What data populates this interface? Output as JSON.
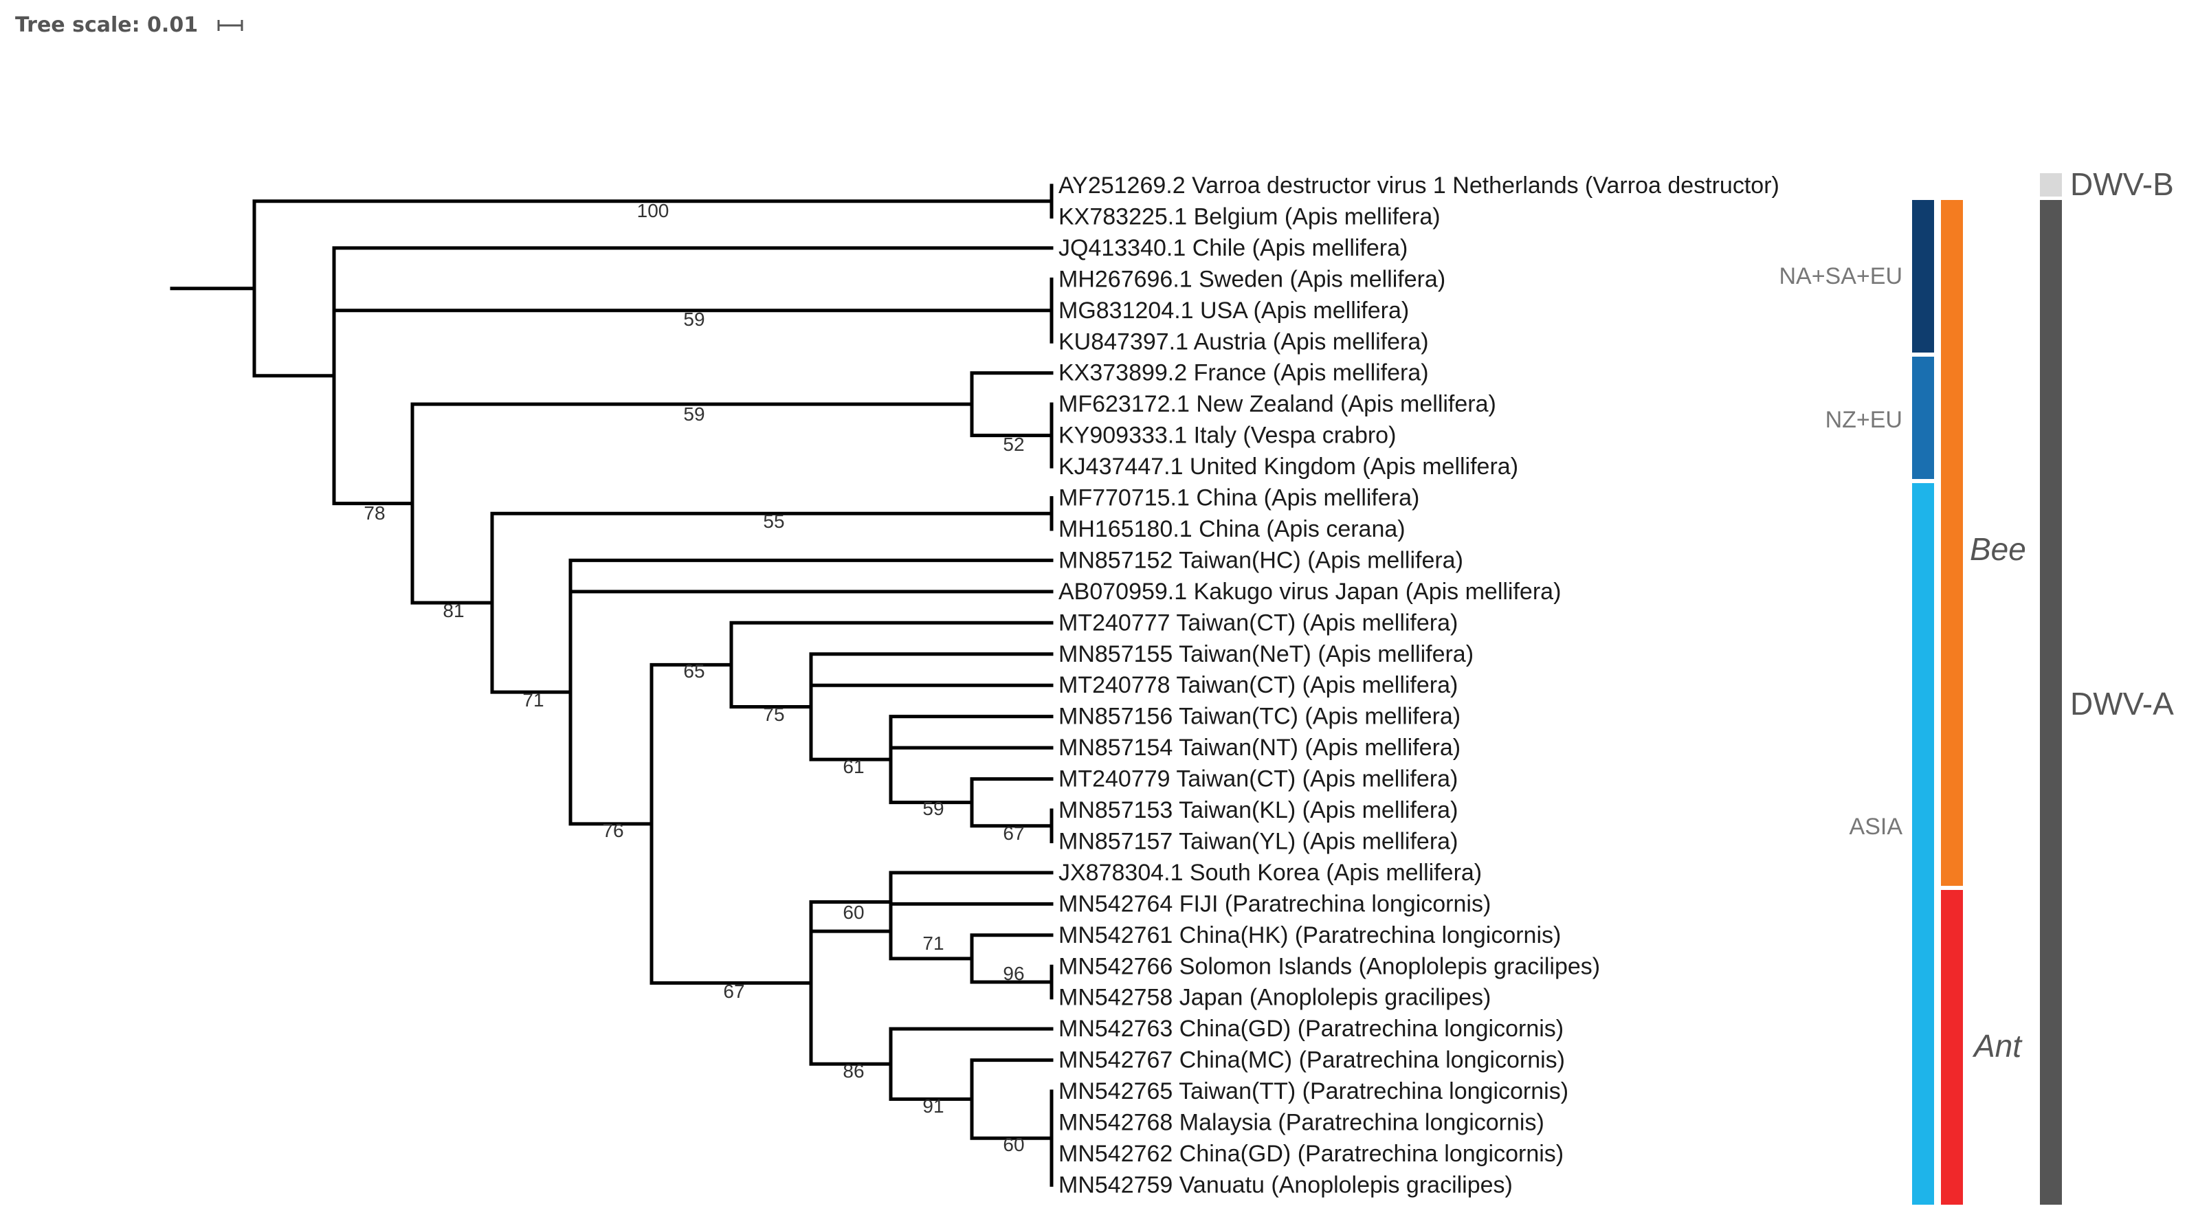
{
  "tree_scale": {
    "label": "Tree scale: 0.01"
  },
  "leaves": [
    "AY251269.2 Varroa destructor virus 1 Netherlands (Varroa destructor)",
    "KX783225.1 Belgium (Apis mellifera)",
    "JQ413340.1 Chile (Apis mellifera)",
    "MH267696.1 Sweden (Apis mellifera)",
    "MG831204.1 USA (Apis mellifera)",
    "KU847397.1 Austria (Apis mellifera)",
    "KX373899.2 France (Apis mellifera)",
    "MF623172.1 New Zealand (Apis mellifera)",
    "KY909333.1 Italy (Vespa crabro)",
    "KJ437447.1 United Kingdom (Apis mellifera)",
    "MF770715.1 China (Apis mellifera)",
    "MH165180.1 China (Apis cerana)",
    "MN857152 Taiwan(HC) (Apis mellifera)",
    "AB070959.1 Kakugo virus Japan (Apis mellifera)",
    "MT240777 Taiwan(CT) (Apis mellifera)",
    "MN857155 Taiwan(NeT) (Apis mellifera)",
    "MT240778 Taiwan(CT) (Apis mellifera)",
    "MN857156 Taiwan(TC) (Apis mellifera)",
    "MN857154 Taiwan(NT) (Apis mellifera)",
    "MT240779 Taiwan(CT) (Apis mellifera)",
    "MN857153 Taiwan(KL) (Apis mellifera)",
    "MN857157 Taiwan(YL) (Apis mellifera)",
    "JX878304.1 South Korea (Apis mellifera)",
    "MN542764 FIJI (Paratrechina longicornis)",
    "MN542761 China(HK) (Paratrechina longicornis)",
    "MN542766 Solomon Islands (Anoplolepis gracilipes)",
    "MN542758 Japan (Anoplolepis gracilipes)",
    "MN542763 China(GD) (Paratrechina longicornis)",
    "MN542767 China(MC) (Paratrechina longicornis)",
    "MN542765 Taiwan(TT) (Paratrechina longicornis)",
    "MN542768 Malaysia (Paratrechina longicornis)",
    "MN542762 China(GD) (Paratrechina longicornis)",
    "MN542759 Vanuatu (Anoplolepis gracilipes)"
  ],
  "bootstrap": [
    "100",
    "59",
    "59",
    "52",
    "78",
    "55",
    "81",
    "71",
    "65",
    "75",
    "61",
    "59",
    "67",
    "76",
    "60",
    "71",
    "96",
    "67",
    "86",
    "91",
    "60"
  ],
  "region_groups": [
    {
      "label": "NA+SA+EU",
      "color": "#0f3d6e"
    },
    {
      "label": "NZ+EU",
      "color": "#1a6fb0"
    },
    {
      "label": "ASIA",
      "color": "#1eb4ea"
    }
  ],
  "host_groups": [
    {
      "label": "Bee",
      "color": "#f47c20"
    },
    {
      "label": "Ant",
      "color": "#f0282a"
    }
  ],
  "genotype_groups": [
    {
      "label": "DWV-B",
      "color": "#d9d9d9"
    },
    {
      "label": "DWV-A",
      "color": "#555555"
    }
  ]
}
